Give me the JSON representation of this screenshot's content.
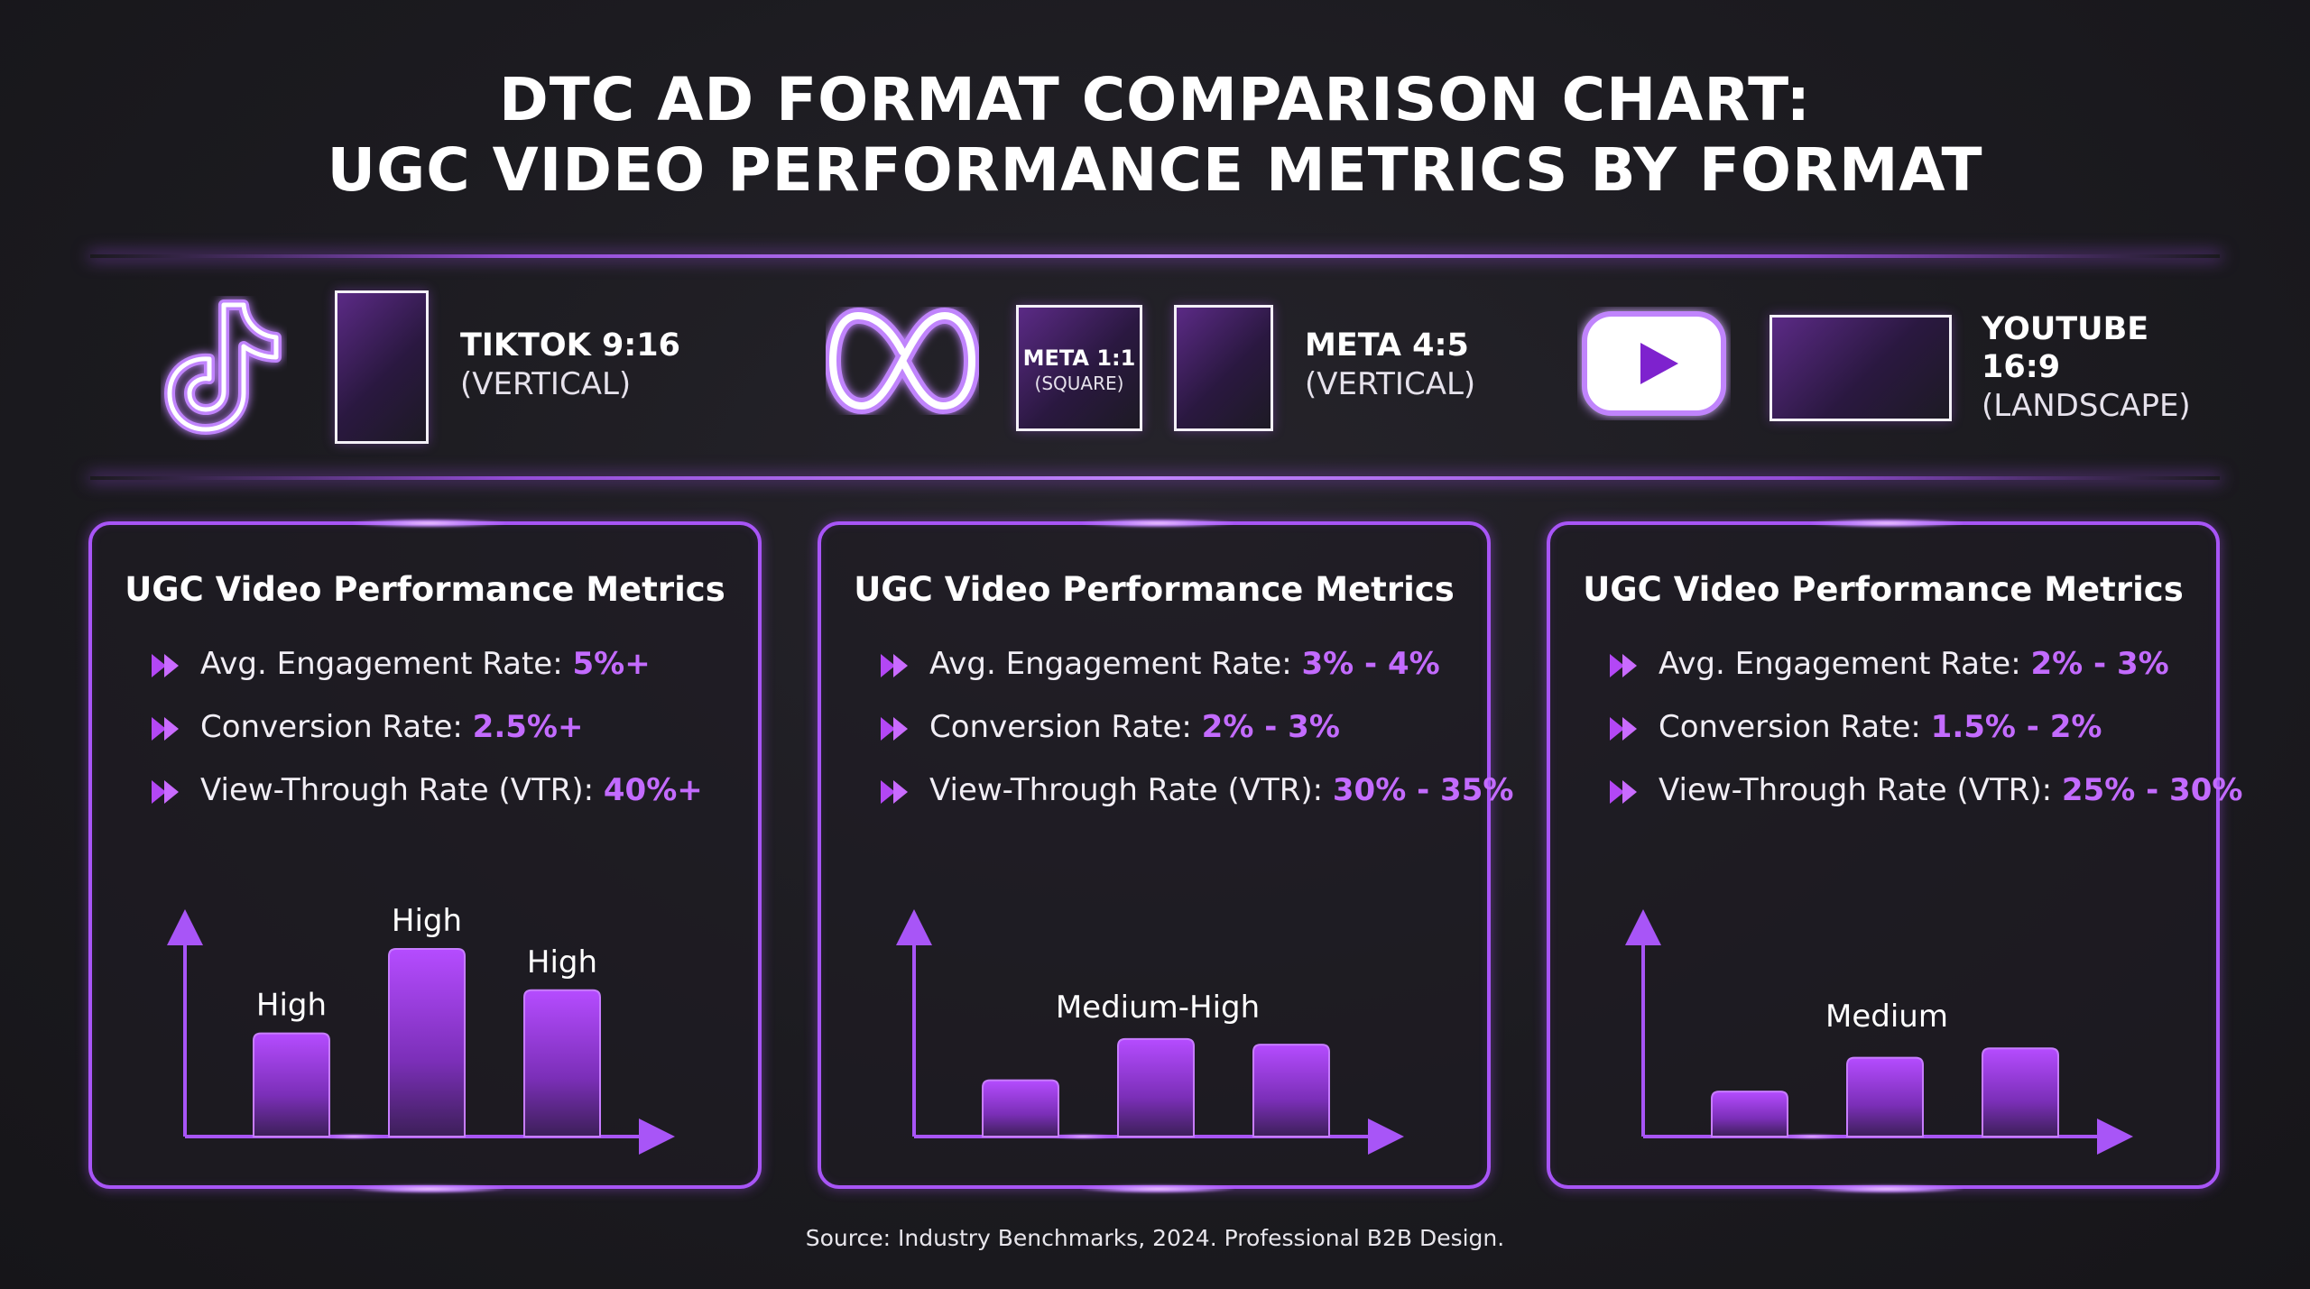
{
  "title": {
    "line1": "DTC AD FORMAT COMPARISON CHART:",
    "line2": "UGC VIDEO PERFORMANCE METRICS BY FORMAT"
  },
  "formats": [
    {
      "icon": "tiktok-logo-icon",
      "name": "TIKTOK 9:16",
      "sub": "(VERTICAL)"
    },
    {
      "icon": "meta-logo-icon",
      "frame_name": "META 1:1",
      "frame_sub": "(SQUARE)",
      "name": "META 4:5",
      "sub": "(VERTICAL)"
    },
    {
      "icon": "youtube-logo-icon",
      "name": "YOUTUBE",
      "name2": "16:9",
      "sub": "(LANDSCAPE)"
    }
  ],
  "panels": [
    {
      "heading": "UGC Video Performance Metrics",
      "metrics": [
        {
          "label": "Avg. Engagement Rate: ",
          "value": "5%+"
        },
        {
          "label": "Conversion Rate: ",
          "value": "2.5%+"
        },
        {
          "label": "View-Through Rate (VTR): ",
          "value": "40%+"
        }
      ]
    },
    {
      "heading": "UGC Video Performance Metrics",
      "metrics": [
        {
          "label": "Avg. Engagement Rate: ",
          "value": "3% - 4%"
        },
        {
          "label": "Conversion Rate: ",
          "value": "2% - 3%"
        },
        {
          "label": "View-Through Rate (VTR): ",
          "value": "30% - 35%"
        }
      ]
    },
    {
      "heading": "UGC Video Performance Metrics",
      "metrics": [
        {
          "label": "Avg. Engagement Rate: ",
          "value": "2% - 3%"
        },
        {
          "label": "Conversion Rate: ",
          "value": "1.5% - 2%"
        },
        {
          "label": "View-Through Rate (VTR): ",
          "value": "25% - 30%"
        }
      ]
    }
  ],
  "chart_data": [
    {
      "type": "bar",
      "values": [
        0.55,
        1.0,
        0.78
      ],
      "data_labels": [
        "High",
        "High",
        "High"
      ],
      "ylim": [
        0,
        1.15
      ]
    },
    {
      "type": "bar",
      "values": [
        0.3,
        0.52,
        0.49
      ],
      "data_labels": [
        "Medium-High"
      ],
      "ylim": [
        0,
        1.15
      ]
    },
    {
      "type": "bar",
      "values": [
        0.24,
        0.42,
        0.47
      ],
      "data_labels": [
        "Medium"
      ],
      "ylim": [
        0,
        1.15
      ]
    }
  ],
  "source": "Source: Industry Benchmarks, 2024. Professional B2B Design.",
  "colors": {
    "accent": "#a855f7",
    "value": "#c36bff",
    "background": "#1c1b20"
  }
}
